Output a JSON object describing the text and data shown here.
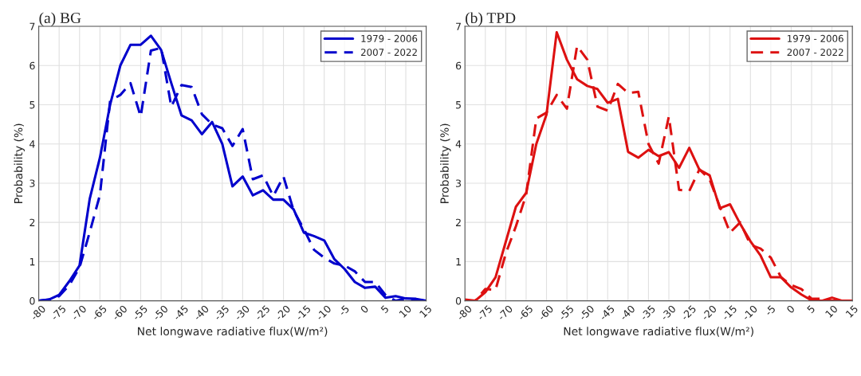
{
  "chart_data": [
    {
      "type": "line",
      "title": "(a) BG",
      "xlabel": "Net longwave radiative flux(W/m²)",
      "ylabel": "Probability (%)",
      "x": [
        -80,
        -77.5,
        -75,
        -72.5,
        -70,
        -67.5,
        -65,
        -62.5,
        -60,
        -57.5,
        -55,
        -52.5,
        -50,
        -47.5,
        -45,
        -42.5,
        -40,
        -37.5,
        -35,
        -32.5,
        -30,
        -27.5,
        -25,
        -22.5,
        -20,
        -17.5,
        -15,
        -12.5,
        -10,
        -7.5,
        -5,
        -2.5,
        0,
        2.5,
        5,
        7.5,
        10,
        12.5,
        15
      ],
      "series": [
        {
          "name": "1979 - 2006",
          "color": "#0000cc",
          "line_style": "solid",
          "values": [
            0,
            0.03,
            0.15,
            0.5,
            0.9,
            2.6,
            3.65,
            5.0,
            6.0,
            6.53,
            6.53,
            6.76,
            6.4,
            5.55,
            4.73,
            4.6,
            4.25,
            4.56,
            4.0,
            2.92,
            3.17,
            2.69,
            2.82,
            2.58,
            2.58,
            2.33,
            1.74,
            1.65,
            1.54,
            1.06,
            0.81,
            0.48,
            0.33,
            0.36,
            0.08,
            0.12,
            0.06,
            0.05,
            0
          ]
        },
        {
          "name": "2007 - 2022",
          "color": "#0000cc",
          "line_style": "dashed",
          "values": [
            0,
            0.03,
            0.12,
            0.4,
            0.85,
            1.75,
            2.7,
            5.1,
            5.25,
            5.55,
            4.7,
            6.38,
            6.45,
            4.95,
            5.5,
            5.45,
            4.76,
            4.5,
            4.4,
            3.95,
            4.38,
            3.1,
            3.2,
            2.67,
            3.17,
            2.3,
            1.83,
            1.3,
            1.1,
            0.95,
            0.9,
            0.75,
            0.48,
            0.48,
            0.15,
            0,
            0.05,
            0.03,
            0
          ]
        }
      ],
      "xlim": [
        -80,
        15
      ],
      "xticks": [
        -80,
        -75,
        -70,
        -65,
        -60,
        -55,
        -50,
        -45,
        -40,
        -35,
        -30,
        -25,
        -20,
        -15,
        -10,
        -5,
        0,
        5,
        10,
        15
      ],
      "ylim": [
        0,
        7
      ],
      "yticks": [
        0,
        1,
        2,
        3,
        4,
        5,
        6,
        7
      ],
      "grid": true,
      "legend": "top right"
    },
    {
      "type": "line",
      "title": "(b) TPD",
      "xlabel": "Net longwave radiative flux(W/m²)",
      "ylabel": "Probability (%)",
      "x": [
        -80,
        -77.5,
        -75,
        -72.5,
        -70,
        -67.5,
        -65,
        -62.5,
        -60,
        -57.5,
        -55,
        -52.5,
        -50,
        -47.5,
        -45,
        -42.5,
        -40,
        -37.5,
        -35,
        -32.5,
        -30,
        -27.5,
        -25,
        -22.5,
        -20,
        -17.5,
        -15,
        -12.5,
        -10,
        -7.5,
        -5,
        -2.5,
        0,
        2.5,
        5,
        7.5,
        10,
        12.5,
        15
      ],
      "series": [
        {
          "name": "1979 - 2006",
          "color": "#dd1111",
          "line_style": "solid",
          "values": [
            0.03,
            0,
            0.22,
            0.6,
            1.5,
            2.4,
            2.75,
            4.0,
            4.75,
            6.85,
            6.15,
            5.65,
            5.48,
            5.4,
            5.05,
            5.15,
            3.8,
            3.65,
            3.85,
            3.69,
            3.79,
            3.39,
            3.9,
            3.34,
            3.2,
            2.36,
            2.46,
            1.96,
            1.52,
            1.15,
            0.6,
            0.6,
            0.34,
            0.16,
            0.01,
            0,
            0.08,
            0,
            0
          ]
        },
        {
          "name": "2007 - 2022",
          "color": "#dd1111",
          "line_style": "dashed",
          "values": [
            0,
            0,
            0.3,
            0.28,
            1.2,
            1.9,
            2.7,
            4.65,
            4.8,
            5.25,
            4.9,
            6.5,
            6.15,
            4.95,
            4.85,
            5.53,
            5.3,
            5.33,
            4.0,
            3.5,
            4.7,
            2.83,
            2.8,
            3.35,
            3.1,
            2.4,
            1.74,
            2.0,
            1.43,
            1.33,
            1.1,
            0.6,
            0.4,
            0.3,
            0.05,
            0.05,
            0,
            0,
            0
          ]
        }
      ],
      "xlim": [
        -80,
        15
      ],
      "xticks": [
        -80,
        -75,
        -70,
        -65,
        -60,
        -55,
        -50,
        -45,
        -40,
        -35,
        -30,
        -25,
        -20,
        -15,
        -10,
        -5,
        0,
        5,
        10,
        15
      ],
      "ylim": [
        0,
        7
      ],
      "yticks": [
        0,
        1,
        2,
        3,
        4,
        5,
        6,
        7
      ],
      "grid": true,
      "legend": "top right"
    }
  ]
}
